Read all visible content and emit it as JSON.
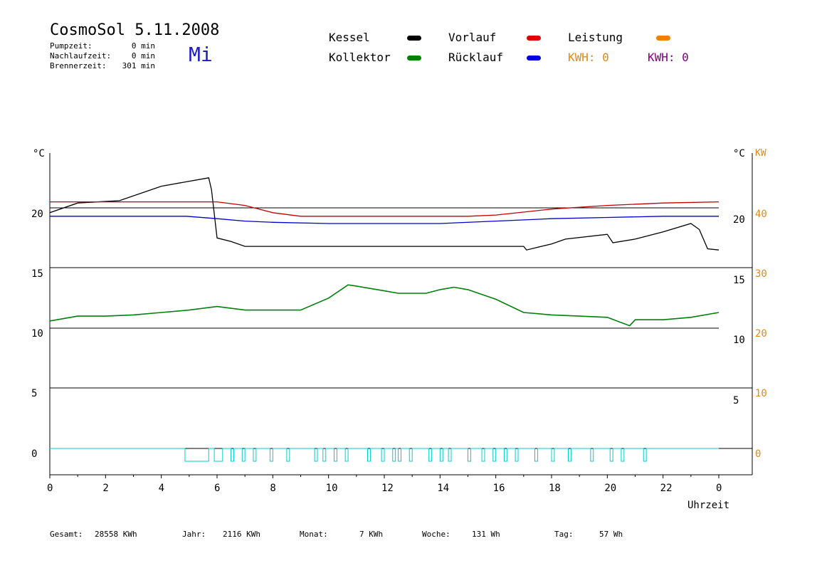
{
  "header": {
    "title": "CosmoSol 5.11.2008",
    "day": "Mi",
    "info": [
      {
        "label": "Pumpzeit:",
        "value": "0 min"
      },
      {
        "label": "Nachlaufzeit:",
        "value": "0 min"
      },
      {
        "label": "Brennerzeit:",
        "value": "301 min"
      }
    ]
  },
  "legend": {
    "items": [
      {
        "label": "Kessel",
        "color": "#000000"
      },
      {
        "label": "Vorlauf",
        "color": "#e00000"
      },
      {
        "label": "Leistung",
        "color": "#f08000"
      },
      {
        "label": "Kollektor",
        "color": "#008000"
      },
      {
        "label": "Rücklauf",
        "color": "#0000e0"
      }
    ],
    "kwh": [
      {
        "text": "KWH: 0",
        "color": "#e08a1a"
      },
      {
        "text": "KWH: 0",
        "color": "#800080"
      }
    ]
  },
  "axes": {
    "left_unit": "°C",
    "right_unit": "°C",
    "right_unit2": "KW",
    "left_ticks": [
      "20",
      "15",
      "10",
      "5",
      "0"
    ],
    "right_ticks": [
      "20",
      "15",
      "10",
      "5"
    ],
    "right2_ticks": [
      "40",
      "30",
      "20",
      "10",
      "0"
    ],
    "x_ticks": [
      "0",
      "2",
      "4",
      "6",
      "8",
      "10",
      "12",
      "14",
      "16",
      "18",
      "20",
      "22",
      "0"
    ],
    "x_label": "Uhrzeit"
  },
  "footer": [
    {
      "label": "Gesamt:",
      "value": "28558 KWh"
    },
    {
      "label": "Jahr:",
      "value": "2116 KWh"
    },
    {
      "label": "Monat:",
      "value": "7 KWh"
    },
    {
      "label": "Woche:",
      "value": "131 Wh"
    },
    {
      "label": "Tag:",
      "value": "57 Wh"
    }
  ],
  "chart_data": {
    "type": "line",
    "xlim": [
      0,
      24
    ],
    "series": [
      {
        "name": "Kessel",
        "color": "#000000",
        "points": [
          [
            0,
            19.6
          ],
          [
            1,
            20.4
          ],
          [
            2.5,
            20.6
          ],
          [
            4,
            21.8
          ],
          [
            5.7,
            22.5
          ],
          [
            5.8,
            21.5
          ],
          [
            6,
            17.5
          ],
          [
            6.5,
            17.2
          ],
          [
            7,
            16.8
          ],
          [
            17,
            16.8
          ],
          [
            17.1,
            16.5
          ],
          [
            18,
            17
          ],
          [
            18.5,
            17.4
          ],
          [
            20,
            17.8
          ],
          [
            20.2,
            17.1
          ],
          [
            21,
            17.4
          ],
          [
            22,
            18
          ],
          [
            23,
            18.7
          ],
          [
            23.3,
            18.2
          ],
          [
            23.6,
            16.6
          ],
          [
            24,
            16.5
          ]
        ]
      },
      {
        "name": "Vorlauf",
        "color": "#c00000",
        "points": [
          [
            0,
            20.5
          ],
          [
            6,
            20.5
          ],
          [
            7,
            20.2
          ],
          [
            8,
            19.6
          ],
          [
            9,
            19.3
          ],
          [
            12,
            19.3
          ],
          [
            15,
            19.3
          ],
          [
            16,
            19.4
          ],
          [
            18,
            19.9
          ],
          [
            20,
            20.2
          ],
          [
            22,
            20.4
          ],
          [
            24,
            20.5
          ]
        ]
      },
      {
        "name": "Rücklauf",
        "color": "#0000cc",
        "points": [
          [
            0,
            19.3
          ],
          [
            4.9,
            19.3
          ],
          [
            6,
            19.1
          ],
          [
            7,
            18.9
          ],
          [
            8,
            18.8
          ],
          [
            10,
            18.7
          ],
          [
            12,
            18.7
          ],
          [
            14,
            18.7
          ],
          [
            16,
            18.9
          ],
          [
            18,
            19.1
          ],
          [
            20,
            19.2
          ],
          [
            22,
            19.3
          ],
          [
            24,
            19.3
          ]
        ]
      },
      {
        "name": "Kollektor",
        "color": "#00800a",
        "points": [
          [
            0,
            10.6
          ],
          [
            1,
            11
          ],
          [
            2,
            11
          ],
          [
            3,
            11.1
          ],
          [
            4,
            11.3
          ],
          [
            5,
            11.5
          ],
          [
            6,
            11.8
          ],
          [
            7,
            11.5
          ],
          [
            8,
            11.5
          ],
          [
            9,
            11.5
          ],
          [
            10,
            12.5
          ],
          [
            10.7,
            13.6
          ],
          [
            11,
            13.5
          ],
          [
            12,
            13.1
          ],
          [
            12.5,
            12.9
          ],
          [
            13.5,
            12.9
          ],
          [
            14,
            13.2
          ],
          [
            14.5,
            13.4
          ],
          [
            15,
            13.2
          ],
          [
            16,
            12.4
          ],
          [
            17,
            11.3
          ],
          [
            18,
            11.1
          ],
          [
            19,
            11
          ],
          [
            20,
            10.9
          ],
          [
            20.8,
            10.2
          ],
          [
            21,
            10.7
          ],
          [
            22,
            10.7
          ],
          [
            23,
            10.9
          ],
          [
            24,
            11.3
          ]
        ]
      }
    ],
    "leistung": {
      "name": "Leistung",
      "color": "#00cccc",
      "pulses": [
        [
          4.85,
          5.7
        ],
        [
          5.9,
          6.2
        ],
        [
          6.5,
          6.6
        ],
        [
          6.9,
          7.0
        ],
        [
          7.3,
          7.4
        ],
        [
          7.9,
          8.0
        ],
        [
          8.5,
          8.6
        ],
        [
          9.5,
          9.6
        ],
        [
          9.8,
          9.9
        ],
        [
          10.2,
          10.3
        ],
        [
          10.6,
          10.7
        ],
        [
          11.4,
          11.5
        ],
        [
          11.9,
          12.0
        ],
        [
          12.3,
          12.4
        ],
        [
          12.5,
          12.6
        ],
        [
          12.9,
          13.0
        ],
        [
          13.6,
          13.7
        ],
        [
          14.0,
          14.1
        ],
        [
          14.3,
          14.4
        ],
        [
          15.0,
          15.1
        ],
        [
          15.5,
          15.6
        ],
        [
          15.9,
          16.0
        ],
        [
          16.3,
          16.4
        ],
        [
          16.7,
          16.8
        ],
        [
          17.4,
          17.5
        ],
        [
          18.0,
          18.1
        ],
        [
          18.6,
          18.7
        ],
        [
          19.4,
          19.5
        ],
        [
          20.1,
          20.2
        ],
        [
          20.5,
          20.6
        ],
        [
          21.3,
          21.4
        ]
      ]
    }
  }
}
